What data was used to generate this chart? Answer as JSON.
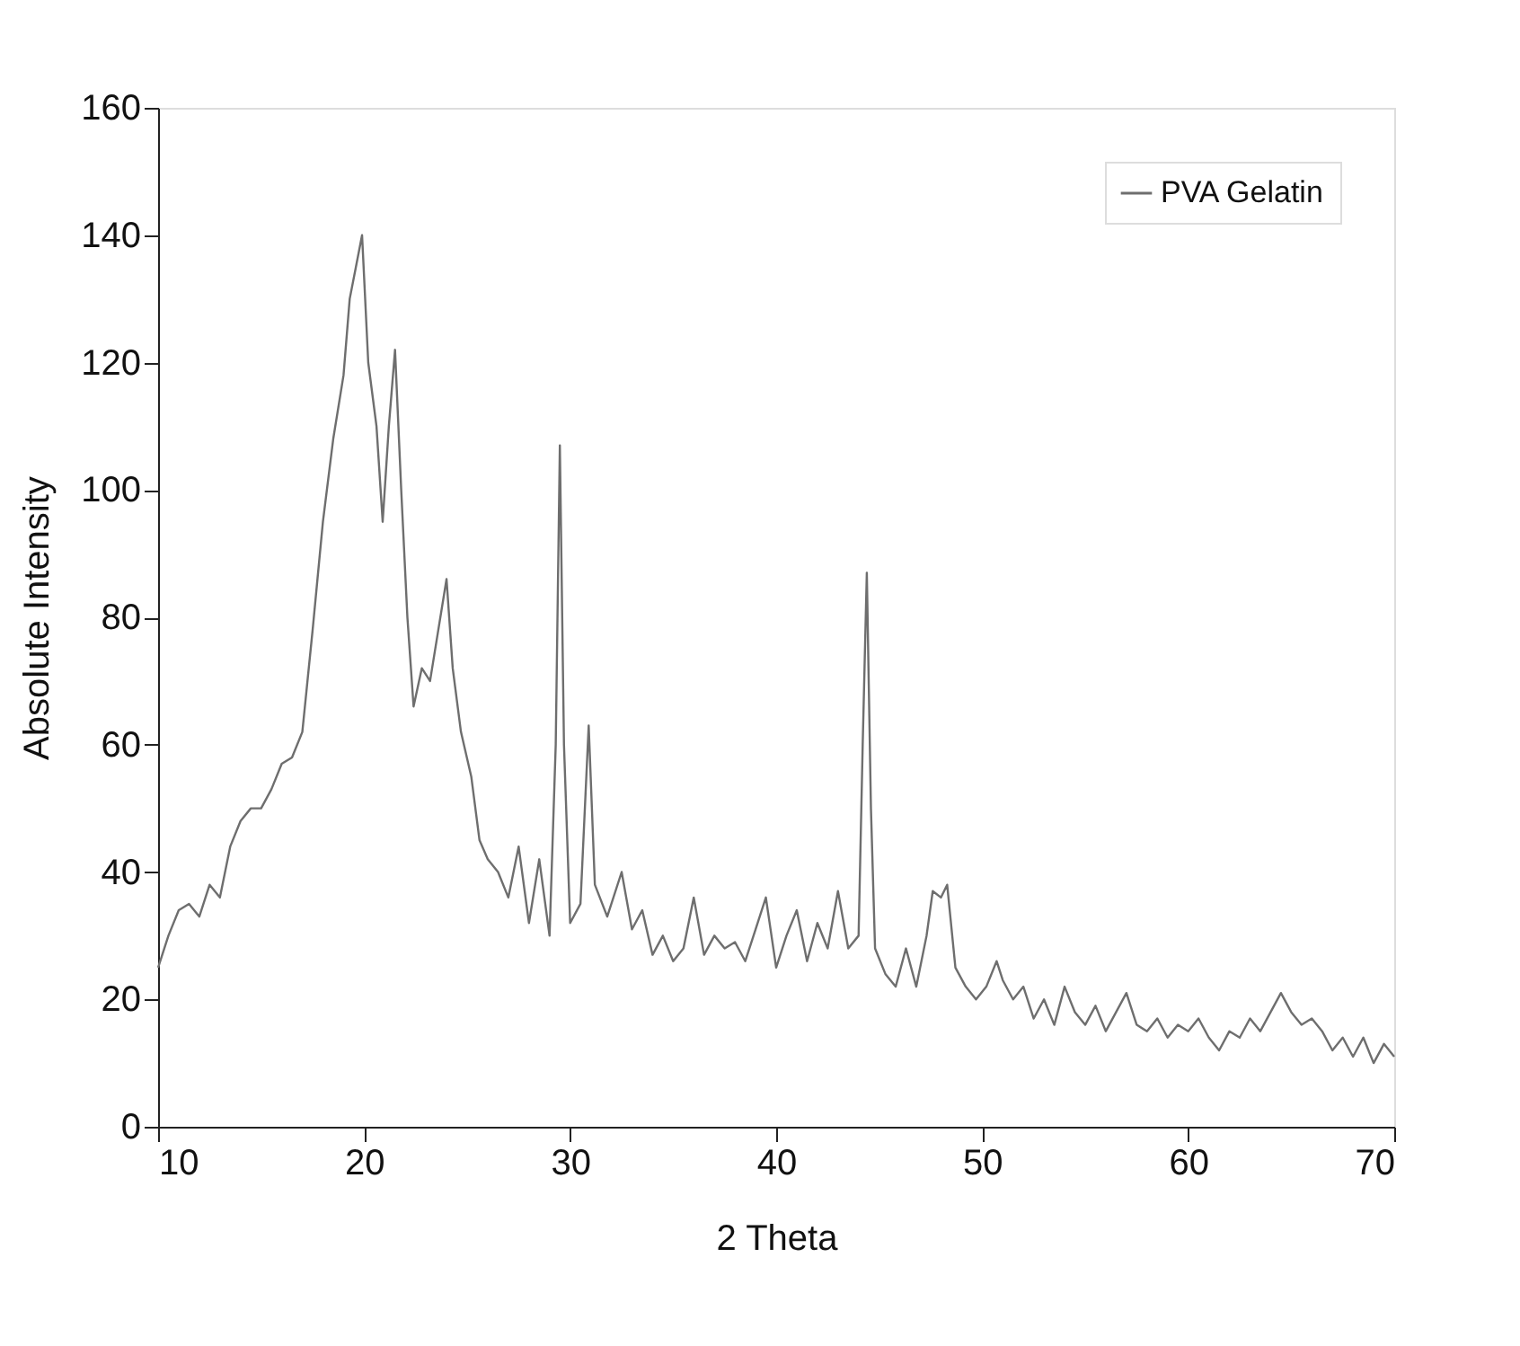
{
  "chart_data": {
    "type": "line",
    "xlabel": "2 Theta",
    "ylabel": "Absolute Intensity",
    "xlim": [
      10,
      70
    ],
    "xticks": [
      10,
      20,
      30,
      40,
      50,
      60,
      70
    ],
    "ylim": [
      0,
      160
    ],
    "yticks": [
      0,
      20,
      40,
      60,
      80,
      100,
      120,
      140,
      160
    ],
    "grid": false,
    "legend": "top right",
    "series": [
      {
        "name": "PVA Gelatin",
        "color": "#6e6e6e",
        "x": [
          10,
          10.5,
          11,
          11.5,
          12,
          12.5,
          13,
          13.5,
          14,
          14.5,
          15,
          15.5,
          16,
          16.5,
          17,
          17.5,
          18,
          18.5,
          19,
          19.3,
          19.6,
          19.9,
          20.2,
          20.6,
          20.9,
          21.2,
          21.5,
          21.8,
          22.1,
          22.4,
          22.8,
          23.2,
          23.6,
          24,
          24.3,
          24.7,
          25.2,
          25.6,
          26,
          26.5,
          27,
          27.5,
          28,
          28.5,
          29,
          29.3,
          29.5,
          29.7,
          30,
          30.5,
          30.9,
          31.2,
          31.8,
          32.5,
          33,
          33.5,
          34,
          34.5,
          35,
          35.5,
          36,
          36.5,
          37,
          37.5,
          38,
          38.5,
          39,
          39.5,
          40,
          40.5,
          41,
          41.5,
          42,
          42.5,
          43,
          43.5,
          44,
          44.2,
          44.4,
          44.6,
          44.8,
          45.3,
          45.8,
          46.3,
          46.8,
          47.3,
          47.6,
          48,
          48.3,
          48.7,
          49.2,
          49.7,
          50.2,
          50.7,
          51,
          51.5,
          52,
          52.5,
          53,
          53.5,
          54,
          54.5,
          55,
          55.5,
          56,
          56.5,
          57,
          57.5,
          58,
          58.5,
          59,
          59.5,
          60,
          60.5,
          61,
          61.5,
          62,
          62.5,
          63,
          63.5,
          64,
          64.5,
          65,
          65.5,
          66,
          66.5,
          67,
          67.5,
          68,
          68.5,
          69,
          69.5,
          70
        ],
        "values": [
          25,
          30,
          34,
          35,
          33,
          38,
          36,
          44,
          48,
          50,
          50,
          53,
          57,
          58,
          62,
          78,
          95,
          108,
          118,
          130,
          135,
          140,
          120,
          110,
          95,
          110,
          122,
          100,
          80,
          66,
          72,
          70,
          78,
          86,
          72,
          62,
          55,
          45,
          42,
          40,
          36,
          44,
          32,
          42,
          30,
          60,
          107,
          60,
          32,
          35,
          63,
          38,
          33,
          40,
          31,
          34,
          27,
          30,
          26,
          28,
          36,
          27,
          30,
          28,
          29,
          26,
          31,
          36,
          25,
          30,
          34,
          26,
          32,
          28,
          37,
          28,
          30,
          60,
          87,
          50,
          28,
          24,
          22,
          28,
          22,
          30,
          37,
          36,
          38,
          25,
          22,
          20,
          22,
          26,
          23,
          20,
          22,
          17,
          20,
          16,
          22,
          18,
          16,
          19,
          15,
          18,
          21,
          16,
          15,
          17,
          14,
          16,
          15,
          17,
          14,
          12,
          15,
          14,
          17,
          15,
          18,
          21,
          18,
          16,
          17,
          15,
          12,
          14,
          11,
          14,
          10,
          13,
          11
        ]
      }
    ]
  }
}
